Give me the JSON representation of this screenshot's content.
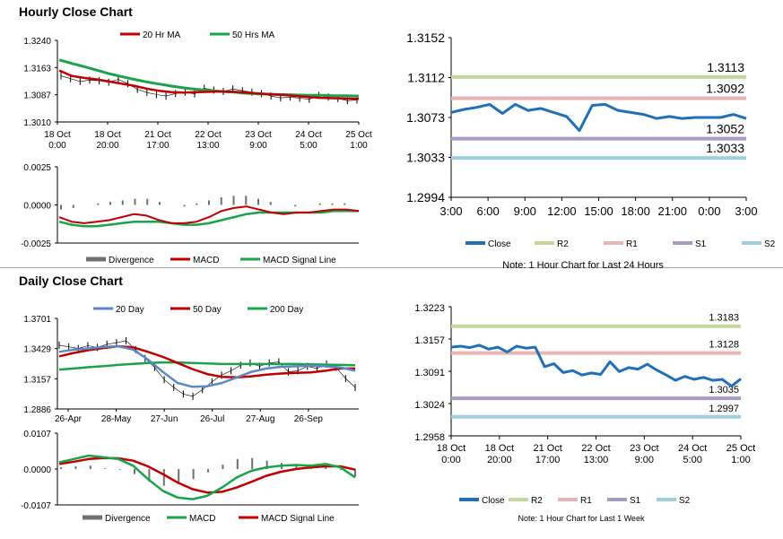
{
  "hourly": {
    "title": "Hourly Close Chart",
    "price_panel": {
      "type": "line",
      "legend": [
        {
          "name": "20 Hr MA",
          "color": "#c00000"
        },
        {
          "name": "50 Hrs MA",
          "color": "#1aa34a"
        }
      ],
      "ylim": [
        1.301,
        1.324
      ],
      "yticks": [
        "1.3240",
        "1.3163",
        "1.3087",
        "1.3010"
      ],
      "xticks": [
        [
          "18 Oct",
          "0:00"
        ],
        [
          "18 Oct",
          "20:00"
        ],
        [
          "21 Oct",
          "17:00"
        ],
        [
          "22 Oct",
          "13:00"
        ],
        [
          "23 Oct",
          "9:00"
        ],
        [
          "24 Oct",
          "5:00"
        ],
        [
          "25 Oct",
          "1:00"
        ]
      ],
      "close": [
        1.314,
        1.3132,
        1.3124,
        1.3128,
        1.3126,
        1.3122,
        1.313,
        1.3118,
        1.3102,
        1.3093,
        1.3087,
        1.3083,
        1.309,
        1.3094,
        1.3089,
        1.3105,
        1.31,
        1.3096,
        1.3103,
        1.3098,
        1.3094,
        1.309,
        1.3083,
        1.3078,
        1.308,
        1.3077,
        1.3074,
        1.3085,
        1.308,
        1.3076,
        1.307,
        1.3072
      ],
      "ma20": [
        1.3155,
        1.314,
        1.3134,
        1.313,
        1.3124,
        1.3118,
        1.3112,
        1.3104,
        1.3098,
        1.3094,
        1.3093,
        1.3094,
        1.3095,
        1.3096,
        1.3095,
        1.3093,
        1.309,
        1.3088,
        1.3086,
        1.3083,
        1.308,
        1.3078,
        1.3077,
        1.3076,
        1.3075
      ],
      "ma50": [
        1.3185,
        1.3175,
        1.3166,
        1.3156,
        1.3146,
        1.3138,
        1.313,
        1.3123,
        1.3117,
        1.3111,
        1.3106,
        1.3102,
        1.3099,
        1.3096,
        1.3094,
        1.3091,
        1.3089,
        1.3088,
        1.3087,
        1.3086,
        1.3085,
        1.3085,
        1.3084,
        1.3084,
        1.3083
      ]
    },
    "macd_panel": {
      "type": "bar",
      "ylim": [
        -0.0025,
        0.0025
      ],
      "yticks": [
        "0.0025",
        "0.0000",
        "-0.0025"
      ],
      "legend": [
        {
          "name": "Divergence",
          "color": "#707070"
        },
        {
          "name": "MACD",
          "color": "#c00000"
        },
        {
          "name": "MACD Signal Line",
          "color": "#1aa34a"
        }
      ],
      "macd": [
        -0.0008,
        -0.0011,
        -0.0012,
        -0.0011,
        -0.001,
        -0.0008,
        -0.0006,
        -0.0007,
        -0.001,
        -0.0012,
        -0.0012,
        -0.0011,
        -0.0008,
        -0.0004,
        -0.0002,
        -0.0001,
        -0.0003,
        -0.0005,
        -0.0006,
        -0.0005,
        -0.0005,
        -0.0004,
        -0.0003,
        -0.0003,
        -0.0004
      ],
      "signal": [
        -0.0011,
        -0.0013,
        -0.0014,
        -0.0014,
        -0.0013,
        -0.0012,
        -0.0011,
        -0.0011,
        -0.0011,
        -0.0012,
        -0.0013,
        -0.0013,
        -0.0012,
        -0.001,
        -0.0008,
        -0.0006,
        -0.0005,
        -0.0005,
        -0.0005,
        -0.0005,
        -0.0005,
        -0.0005,
        -0.0004,
        -0.0004,
        -0.0004
      ],
      "divergence": [
        -0.0003,
        -0.0002,
        0.0,
        0.0001,
        0.0002,
        0.0003,
        0.0004,
        0.0004,
        0.0002,
        0.0,
        -0.0001,
        0.0001,
        0.0003,
        0.0005,
        0.0006,
        0.0006,
        0.0004,
        0.0002,
        0.0,
        -0.0001,
        0.0,
        0.0001,
        0.0001,
        0.0001,
        0.0
      ]
    },
    "sr_panel": {
      "type": "line",
      "ylim": [
        1.2994,
        1.3152
      ],
      "yticks": [
        "1.3152",
        "1.3112",
        "1.3073",
        "1.3033",
        "1.2994"
      ],
      "xticks": [
        "3:00",
        "6:00",
        "9:00",
        "12:00",
        "15:00",
        "18:00",
        "21:00",
        "0:00",
        "3:00"
      ],
      "close": [
        1.3078,
        1.3081,
        1.3083,
        1.3086,
        1.3077,
        1.3086,
        1.308,
        1.3082,
        1.3078,
        1.3074,
        1.306,
        1.3085,
        1.3086,
        1.308,
        1.3078,
        1.3076,
        1.3072,
        1.3074,
        1.3072,
        1.3073,
        1.3073,
        1.3073,
        1.3076,
        1.3072
      ],
      "levels": [
        {
          "name": "R2",
          "value": 1.3113,
          "label": "1.3113",
          "color": "#c4d89b"
        },
        {
          "name": "R1",
          "value": 1.3092,
          "label": "1.3092",
          "color": "#e8b4b4"
        },
        {
          "name": "S1",
          "value": 1.3052,
          "label": "1.3052",
          "color": "#a99bc4"
        },
        {
          "name": "S2",
          "value": 1.3033,
          "label": "1.3033",
          "color": "#9fcfdf"
        }
      ],
      "legend_close": "Close",
      "close_color": "#1f70b8",
      "note": "Note: 1 Hour Chart for Last 24 Hours"
    }
  },
  "daily": {
    "title": "Daily Close Chart",
    "price_panel": {
      "type": "line",
      "legend": [
        {
          "name": "20 Day",
          "color": "#5b87c4"
        },
        {
          "name": "50 Day",
          "color": "#c00000"
        },
        {
          "name": "200 Day",
          "color": "#1aa34a"
        }
      ],
      "ylim": [
        1.2886,
        1.3701
      ],
      "yticks": [
        "1.3701",
        "1.3429",
        "1.3157",
        "1.2886"
      ],
      "xticks": [
        "26-Apr",
        "28-May",
        "27-Jun",
        "26-Jul",
        "27-Aug",
        "26-Sep"
      ],
      "close": [
        1.346,
        1.3445,
        1.343,
        1.3455,
        1.344,
        1.3468,
        1.3482,
        1.35,
        1.342,
        1.334,
        1.326,
        1.315,
        1.308,
        1.302,
        1.3,
        1.306,
        1.313,
        1.319,
        1.323,
        1.328,
        1.33,
        1.327,
        1.33,
        1.331,
        1.322,
        1.323,
        1.327,
        1.325,
        1.329,
        1.326,
        1.316,
        1.308
      ],
      "ma20": [
        1.34,
        1.342,
        1.343,
        1.3445,
        1.345,
        1.342,
        1.333,
        1.322,
        1.312,
        1.3085,
        1.309,
        1.312,
        1.317,
        1.322,
        1.325,
        1.3265,
        1.327,
        1.3275,
        1.327,
        1.326,
        1.323
      ],
      "ma50": [
        1.336,
        1.339,
        1.3415,
        1.3435,
        1.345,
        1.344,
        1.34,
        1.3355,
        1.33,
        1.3245,
        1.32,
        1.3175,
        1.317,
        1.318,
        1.3195,
        1.3205,
        1.321,
        1.3215,
        1.323,
        1.325,
        1.325
      ],
      "ma200": [
        1.324,
        1.325,
        1.3262,
        1.3272,
        1.3282,
        1.3292,
        1.33,
        1.3305,
        1.3305,
        1.33,
        1.3295,
        1.329,
        1.329,
        1.329,
        1.329,
        1.329,
        1.329,
        1.3288,
        1.3285,
        1.3282,
        1.328
      ]
    },
    "macd_panel": {
      "type": "bar",
      "ylim": [
        -0.0107,
        0.0107
      ],
      "yticks": [
        "0.0107",
        "0.0000",
        "-0.0107"
      ],
      "legend": [
        {
          "name": "Divergence",
          "color": "#707070"
        },
        {
          "name": "MACD",
          "color": "#1aa34a"
        },
        {
          "name": "MACD Signal Line",
          "color": "#c00000"
        }
      ],
      "macd": [
        0.002,
        0.003,
        0.004,
        0.0035,
        0.003,
        0.001,
        -0.003,
        -0.0065,
        -0.0085,
        -0.009,
        -0.008,
        -0.0055,
        -0.0025,
        -0.0005,
        0.0005,
        0.001,
        0.0012,
        0.001,
        0.0015,
        0.0005,
        -0.0025
      ],
      "signal": [
        0.0015,
        0.0022,
        0.003,
        0.0033,
        0.0032,
        0.0025,
        0.0008,
        -0.0015,
        -0.004,
        -0.006,
        -0.007,
        -0.0068,
        -0.0055,
        -0.0038,
        -0.002,
        -0.0008,
        0.0,
        0.0005,
        0.0008,
        0.0008,
        -0.0002
      ],
      "divergence": [
        0.0005,
        0.0008,
        0.001,
        0.0002,
        -0.0002,
        -0.0015,
        -0.0038,
        -0.005,
        -0.0045,
        -0.003,
        -0.001,
        0.0013,
        0.003,
        0.0033,
        0.0025,
        0.0018,
        0.0012,
        0.0005,
        0.0007,
        -0.0003,
        -0.0023
      ]
    },
    "sr_panel": {
      "type": "line",
      "ylim": [
        1.2958,
        1.3223
      ],
      "yticks": [
        "1.3223",
        "1.3157",
        "1.3091",
        "1.3024",
        "1.2958"
      ],
      "xticks": [
        [
          "18 Oct",
          "0:00"
        ],
        [
          "18 Oct",
          "20:00"
        ],
        [
          "21 Oct",
          "17:00"
        ],
        [
          "22 Oct",
          "13:00"
        ],
        [
          "23 Oct",
          "9:00"
        ],
        [
          "24 Oct",
          "5:00"
        ],
        [
          "25 Oct",
          "1:00"
        ]
      ],
      "close": [
        1.314,
        1.3142,
        1.3139,
        1.3144,
        1.3136,
        1.314,
        1.313,
        1.3142,
        1.3138,
        1.314,
        1.31,
        1.3106,
        1.3088,
        1.3092,
        1.3083,
        1.3087,
        1.3084,
        1.311,
        1.309,
        1.3098,
        1.3095,
        1.3105,
        1.3093,
        1.3083,
        1.3072,
        1.308,
        1.3074,
        1.3078,
        1.3072,
        1.3074,
        1.306,
        1.3075
      ],
      "levels": [
        {
          "name": "R2",
          "value": 1.3183,
          "label": "1.3183",
          "color": "#c4d89b"
        },
        {
          "name": "R1",
          "value": 1.3128,
          "label": "1.3128",
          "color": "#e8b4b4"
        },
        {
          "name": "S1",
          "value": 1.3035,
          "label": "1.3035",
          "color": "#a99bc4"
        },
        {
          "name": "S2",
          "value": 1.2997,
          "label": "1.2997",
          "color": "#9fcfdf"
        }
      ],
      "legend_close": "Close",
      "close_color": "#1f70b8",
      "note": "Note: 1 Hour Chart for Last 1 Week"
    }
  }
}
